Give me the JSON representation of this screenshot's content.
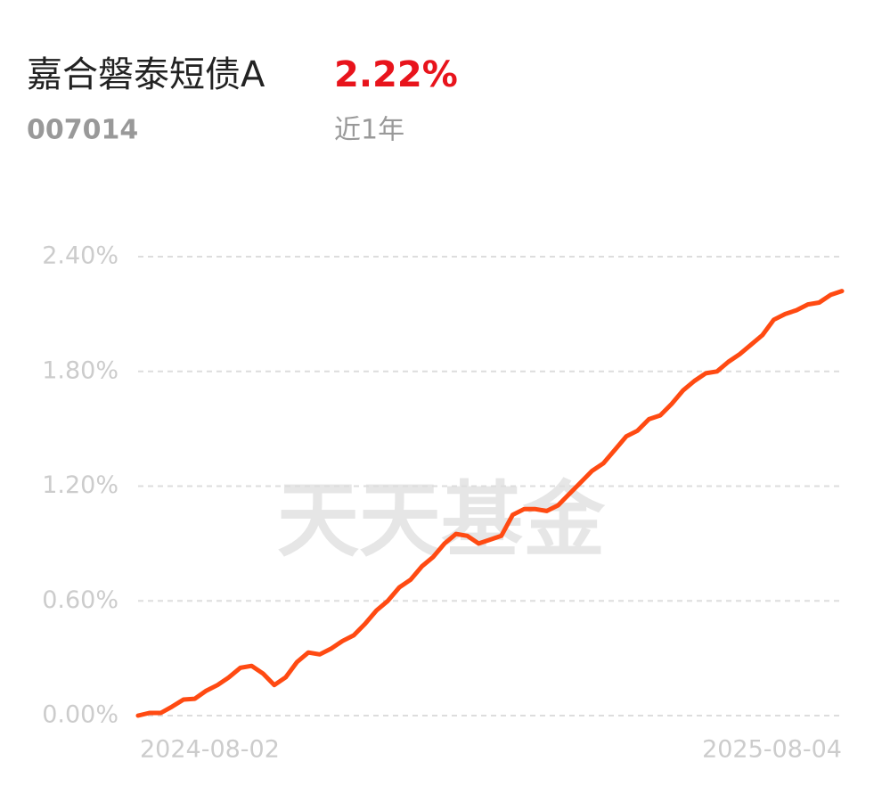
{
  "header": {
    "fund_name": "嘉合磐泰短债A",
    "return": "2.22%",
    "code": "007014",
    "period": "近1年"
  },
  "chart_data": {
    "type": "line",
    "watermark": "天天基金",
    "color": "#ff4a12",
    "categories": [
      "2024-08-02",
      null,
      null,
      null,
      null,
      null,
      null,
      null,
      null,
      null,
      null,
      null,
      null,
      null,
      null,
      null,
      null,
      null,
      null,
      null,
      null,
      null,
      null,
      null,
      null,
      null,
      null,
      null,
      null,
      null,
      null,
      null,
      null,
      null,
      null,
      null,
      null,
      null,
      null,
      null,
      null,
      null,
      null,
      null,
      null,
      null,
      null,
      null,
      null,
      null,
      null,
      null,
      null,
      null,
      null,
      null,
      null,
      null,
      null,
      null,
      null,
      null,
      "2025-08-04"
    ],
    "values": [
      0,
      0.014,
      0.014,
      0.047,
      0.084,
      0.088,
      0.13,
      0.16,
      0.2,
      0.25,
      0.26,
      0.22,
      0.16,
      0.2,
      0.28,
      0.33,
      0.32,
      0.35,
      0.39,
      0.42,
      0.48,
      0.55,
      0.6,
      0.67,
      0.71,
      0.78,
      0.83,
      0.9,
      0.95,
      0.94,
      0.9,
      0.92,
      0.94,
      1.05,
      1.08,
      1.08,
      1.07,
      1.1,
      1.16,
      1.22,
      1.28,
      1.32,
      1.39,
      1.46,
      1.49,
      1.55,
      1.57,
      1.63,
      1.7,
      1.75,
      1.79,
      1.8,
      1.85,
      1.89,
      1.94,
      1.99,
      2.07,
      2.1,
      2.12,
      2.15,
      2.16,
      2.2,
      2.22
    ],
    "ylim": [
      0,
      2.4
    ],
    "yticks": [
      {
        "value": 0,
        "label": "0.00%"
      },
      {
        "value": 0.6,
        "label": "0.60%"
      },
      {
        "value": 1.2,
        "label": "1.20%"
      },
      {
        "value": 1.8,
        "label": "1.80%"
      },
      {
        "value": 2.4,
        "label": "2.40%"
      }
    ],
    "grid": true
  }
}
